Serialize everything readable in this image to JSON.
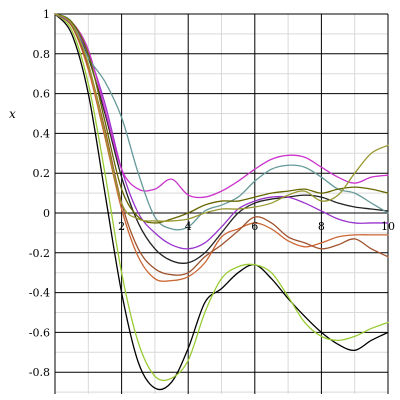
{
  "chart_data": {
    "type": "line",
    "title": "",
    "xlabel": "",
    "ylabel": "x",
    "xlim": [
      0,
      10
    ],
    "ylim": [
      -0.9,
      1.0
    ],
    "grid": true,
    "x_ticks": [
      2,
      4,
      6,
      8,
      10
    ],
    "x_tick_labels": [
      "2",
      "4",
      "6",
      "8",
      "10"
    ],
    "y_ticks": [
      1,
      0.8,
      0.6,
      0.4,
      0.2,
      0,
      -0.2,
      -0.4,
      -0.6,
      -0.8
    ],
    "y_tick_labels": [
      "1",
      "0.8",
      "0.6",
      "0.4",
      "0.2",
      "0",
      "-0.2",
      "-0.4",
      "-0.6",
      "-0.8"
    ],
    "series": [
      {
        "color": "#000000",
        "x": [
          0,
          0.5,
          1,
          1.5,
          2,
          2.5,
          3,
          3.5,
          4,
          4.5,
          5,
          5.5,
          6,
          6.5,
          7,
          7.5,
          8,
          8.5,
          9,
          9.5,
          10
        ],
        "y": [
          1,
          0.9,
          0.6,
          0.1,
          -0.4,
          -0.75,
          -0.88,
          -0.85,
          -0.68,
          -0.45,
          -0.38,
          -0.3,
          -0.26,
          -0.33,
          -0.43,
          -0.52,
          -0.6,
          -0.66,
          -0.69,
          -0.64,
          -0.6
        ]
      },
      {
        "color": "#99cc33",
        "x": [
          0,
          0.5,
          1,
          1.5,
          2,
          2.5,
          3,
          3.5,
          4,
          4.5,
          5,
          5.5,
          6,
          6.5,
          7,
          7.5,
          8,
          8.5,
          9,
          9.5,
          10
        ],
        "y": [
          1,
          0.92,
          0.65,
          0.2,
          -0.3,
          -0.65,
          -0.82,
          -0.83,
          -0.74,
          -0.5,
          -0.33,
          -0.27,
          -0.26,
          -0.3,
          -0.42,
          -0.55,
          -0.62,
          -0.64,
          -0.62,
          -0.58,
          -0.55
        ]
      },
      {
        "color": "#cc6633",
        "x": [
          0,
          0.5,
          1,
          1.5,
          2,
          2.5,
          3,
          3.5,
          4,
          4.5,
          5,
          5.5,
          6,
          6.5,
          7,
          7.5,
          8,
          8.5,
          9,
          9.5,
          10
        ],
        "y": [
          1,
          0.94,
          0.72,
          0.38,
          0.02,
          -0.22,
          -0.33,
          -0.34,
          -0.32,
          -0.25,
          -0.12,
          -0.08,
          -0.05,
          -0.08,
          -0.14,
          -0.17,
          -0.15,
          -0.12,
          -0.11,
          -0.11,
          -0.11
        ]
      },
      {
        "color": "#a0522d",
        "x": [
          0,
          0.5,
          1,
          1.5,
          2,
          2.5,
          3,
          3.5,
          4,
          4.5,
          5,
          5.5,
          6,
          6.5,
          7,
          7.5,
          8,
          8.5,
          9,
          9.5,
          10
        ],
        "y": [
          1,
          0.94,
          0.74,
          0.42,
          0.05,
          -0.18,
          -0.28,
          -0.31,
          -0.3,
          -0.22,
          -0.16,
          -0.09,
          -0.02,
          -0.05,
          -0.12,
          -0.15,
          -0.18,
          -0.16,
          -0.13,
          -0.18,
          -0.22
        ]
      },
      {
        "color": "#222222",
        "x": [
          0,
          0.5,
          1,
          1.5,
          2,
          2.5,
          3,
          3.5,
          4,
          4.5,
          5,
          5.5,
          6,
          6.5,
          7,
          7.5,
          8,
          8.5,
          9,
          9.5,
          10
        ],
        "y": [
          1,
          0.95,
          0.78,
          0.5,
          0.18,
          -0.05,
          -0.18,
          -0.24,
          -0.25,
          -0.2,
          -0.1,
          0.0,
          0.05,
          0.07,
          0.08,
          0.09,
          0.08,
          0.05,
          0.03,
          0.02,
          0.01
        ]
      },
      {
        "color": "#9933cc",
        "x": [
          0,
          0.5,
          1,
          1.5,
          2,
          2.5,
          3,
          3.5,
          4,
          4.5,
          5,
          5.5,
          6,
          6.5,
          7,
          7.5,
          8,
          8.5,
          9,
          9.5,
          10
        ],
        "y": [
          1,
          0.95,
          0.8,
          0.55,
          0.22,
          0.0,
          -0.1,
          -0.16,
          -0.18,
          -0.15,
          -0.07,
          0.02,
          0.06,
          0.08,
          0.08,
          0.05,
          0.01,
          -0.03,
          -0.05,
          -0.05,
          -0.05
        ]
      },
      {
        "color": "#cc33cc",
        "x": [
          0,
          0.5,
          1,
          1.5,
          2,
          2.5,
          3,
          3.5,
          4,
          4.5,
          5,
          5.5,
          6,
          6.5,
          7,
          7.5,
          8,
          8.5,
          9,
          9.5,
          10
        ],
        "y": [
          1,
          0.96,
          0.82,
          0.52,
          0.22,
          0.12,
          0.12,
          0.17,
          0.09,
          0.08,
          0.11,
          0.16,
          0.22,
          0.27,
          0.29,
          0.28,
          0.23,
          0.18,
          0.15,
          0.18,
          0.19
        ]
      },
      {
        "color": "#669999",
        "x": [
          0,
          0.5,
          1,
          1.5,
          2,
          2.5,
          3,
          3.5,
          4,
          4.5,
          5,
          5.5,
          6,
          6.5,
          7,
          7.5,
          8,
          8.5,
          9,
          9.5,
          10
        ],
        "y": [
          1,
          0.96,
          0.78,
          0.66,
          0.48,
          0.2,
          -0.02,
          -0.08,
          -0.07,
          0.01,
          0.04,
          0.08,
          0.16,
          0.22,
          0.24,
          0.23,
          0.18,
          0.12,
          0.1,
          0.05,
          0.0
        ]
      },
      {
        "color": "#666600",
        "x": [
          0,
          0.5,
          1,
          1.5,
          2,
          2.5,
          3,
          3.5,
          4,
          4.5,
          5,
          5.5,
          6,
          6.5,
          7,
          7.5,
          8,
          8.5,
          9,
          9.5,
          10
        ],
        "y": [
          1,
          0.96,
          0.8,
          0.46,
          0.12,
          -0.02,
          -0.05,
          -0.03,
          0.0,
          0.04,
          0.06,
          0.06,
          0.08,
          0.1,
          0.11,
          0.12,
          0.1,
          0.12,
          0.13,
          0.12,
          0.1
        ]
      },
      {
        "color": "#999933",
        "x": [
          0,
          0.5,
          1,
          1.5,
          2,
          2.5,
          3,
          3.5,
          4,
          4.5,
          5,
          5.5,
          6,
          6.5,
          7,
          7.5,
          8,
          8.5,
          9,
          9.5,
          10
        ],
        "y": [
          1,
          0.95,
          0.75,
          0.4,
          0.05,
          -0.03,
          -0.04,
          -0.04,
          -0.03,
          0.0,
          0.02,
          0.02,
          0.03,
          0.05,
          0.09,
          0.11,
          0.06,
          0.09,
          0.2,
          0.3,
          0.34
        ]
      }
    ]
  }
}
